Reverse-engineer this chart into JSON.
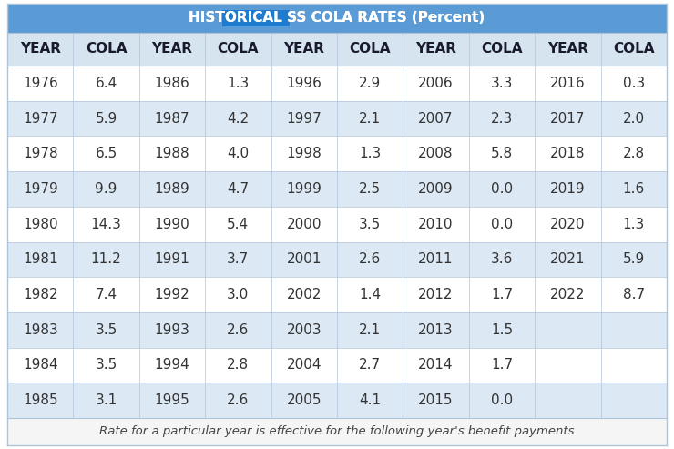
{
  "title_part1": "HISTORICAL ",
  "title_part2": "SS COLA RATES (Percent)",
  "title_bg": "#5b9bd5",
  "title_highlight_bg": "#1f7bcd",
  "title_text_color": "white",
  "title_fontsize": 11,
  "header_labels": [
    "YEAR",
    "COLA",
    "YEAR",
    "COLA",
    "YEAR",
    "COLA",
    "YEAR",
    "COLA",
    "YEAR",
    "COLA"
  ],
  "header_bg": "#d6e4f0",
  "header_text_color": "#1a1a2e",
  "rows": [
    [
      "1976",
      "6.4",
      "1986",
      "1.3",
      "1996",
      "2.9",
      "2006",
      "3.3",
      "2016",
      "0.3"
    ],
    [
      "1977",
      "5.9",
      "1987",
      "4.2",
      "1997",
      "2.1",
      "2007",
      "2.3",
      "2017",
      "2.0"
    ],
    [
      "1978",
      "6.5",
      "1988",
      "4.0",
      "1998",
      "1.3",
      "2008",
      "5.8",
      "2018",
      "2.8"
    ],
    [
      "1979",
      "9.9",
      "1989",
      "4.7",
      "1999",
      "2.5",
      "2009",
      "0.0",
      "2019",
      "1.6"
    ],
    [
      "1980",
      "14.3",
      "1990",
      "5.4",
      "2000",
      "3.5",
      "2010",
      "0.0",
      "2020",
      "1.3"
    ],
    [
      "1981",
      "11.2",
      "1991",
      "3.7",
      "2001",
      "2.6",
      "2011",
      "3.6",
      "2021",
      "5.9"
    ],
    [
      "1982",
      "7.4",
      "1992",
      "3.0",
      "2002",
      "1.4",
      "2012",
      "1.7",
      "2022",
      "8.7"
    ],
    [
      "1983",
      "3.5",
      "1993",
      "2.6",
      "2003",
      "2.1",
      "2013",
      "1.5",
      "",
      ""
    ],
    [
      "1984",
      "3.5",
      "1994",
      "2.8",
      "2004",
      "2.7",
      "2014",
      "1.7",
      "",
      ""
    ],
    [
      "1985",
      "3.1",
      "1995",
      "2.6",
      "2005",
      "4.1",
      "2015",
      "0.0",
      "",
      ""
    ]
  ],
  "row_odd_bg": "#ffffff",
  "row_even_bg": "#dce9f5",
  "row_text_color": "#333333",
  "footer_text": "Rate for a particular year is effective for the following year's benefit payments",
  "footer_bg": "#f5f5f5",
  "footer_text_color": "#444444",
  "border_color": "#b0c4d8",
  "font_size_data": 11,
  "font_size_header": 11,
  "fig_bg": "#ffffff"
}
